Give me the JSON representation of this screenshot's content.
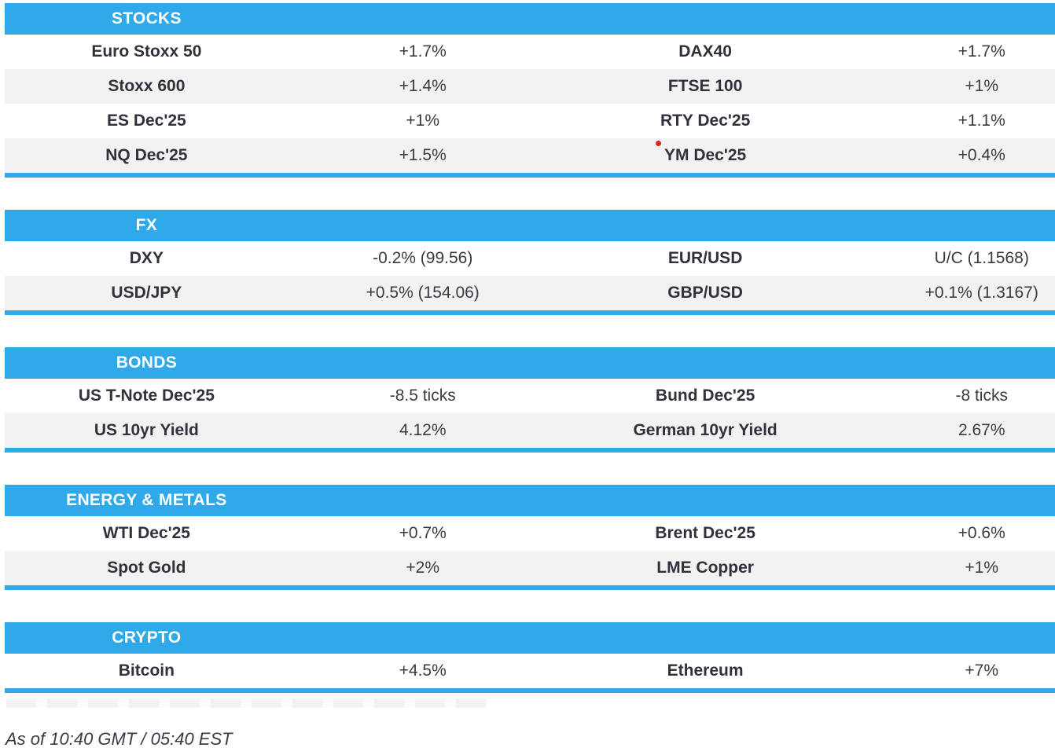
{
  "theme": {
    "accent_blue": "#2fa9e9",
    "row_alt": "#f2f2f3",
    "header_text": "#ffffff",
    "label_text": "#30313a",
    "value_text": "#3a3b42",
    "footer_text": "#3a3b45",
    "marker_red": "#e4251f"
  },
  "sections": [
    {
      "title": "STOCKS",
      "rows": [
        {
          "l_label": "Euro Stoxx 50",
          "l_value": "+1.7%",
          "r_label": "DAX40",
          "r_value": "+1.7%"
        },
        {
          "l_label": "Stoxx 600",
          "l_value": "+1.4%",
          "r_label": "FTSE 100",
          "r_value": "+1%"
        },
        {
          "l_label": "ES Dec'25",
          "l_value": "+1%",
          "r_label": "RTY Dec'25",
          "r_value": "+1.1%"
        },
        {
          "l_label": "NQ Dec'25",
          "l_value": "+1.5%",
          "r_label": "YM Dec'25",
          "r_value": "+0.4%"
        }
      ]
    },
    {
      "title": "FX",
      "rows": [
        {
          "l_label": "DXY",
          "l_value": "-0.2% (99.56)",
          "r_label": "EUR/USD",
          "r_value": "U/C (1.1568)"
        },
        {
          "l_label": "USD/JPY",
          "l_value": "+0.5% (154.06)",
          "r_label": "GBP/USD",
          "r_value": "+0.1% (1.3167)"
        }
      ]
    },
    {
      "title": "BONDS",
      "rows": [
        {
          "l_label": "US T-Note Dec'25",
          "l_value": "-8.5 ticks",
          "r_label": "Bund Dec'25",
          "r_value": "-8 ticks"
        },
        {
          "l_label": "US 10yr Yield",
          "l_value": "4.12%",
          "r_label": "German 10yr Yield",
          "r_value": "2.67%"
        }
      ]
    },
    {
      "title": "ENERGY & METALS",
      "rows": [
        {
          "l_label": "WTI Dec'25",
          "l_value": "+0.7%",
          "r_label": "Brent Dec'25",
          "r_value": "+0.6%"
        },
        {
          "l_label": "Spot Gold",
          "l_value": "+2%",
          "r_label": "LME Copper",
          "r_value": "+1%"
        }
      ]
    },
    {
      "title": "CRYPTO",
      "rows": [
        {
          "l_label": "Bitcoin",
          "l_value": "+4.5%",
          "r_label": "Ethereum",
          "r_value": "+7%"
        }
      ]
    }
  ],
  "footer": {
    "text": "As of 10:40 GMT / 05:40 EST"
  }
}
